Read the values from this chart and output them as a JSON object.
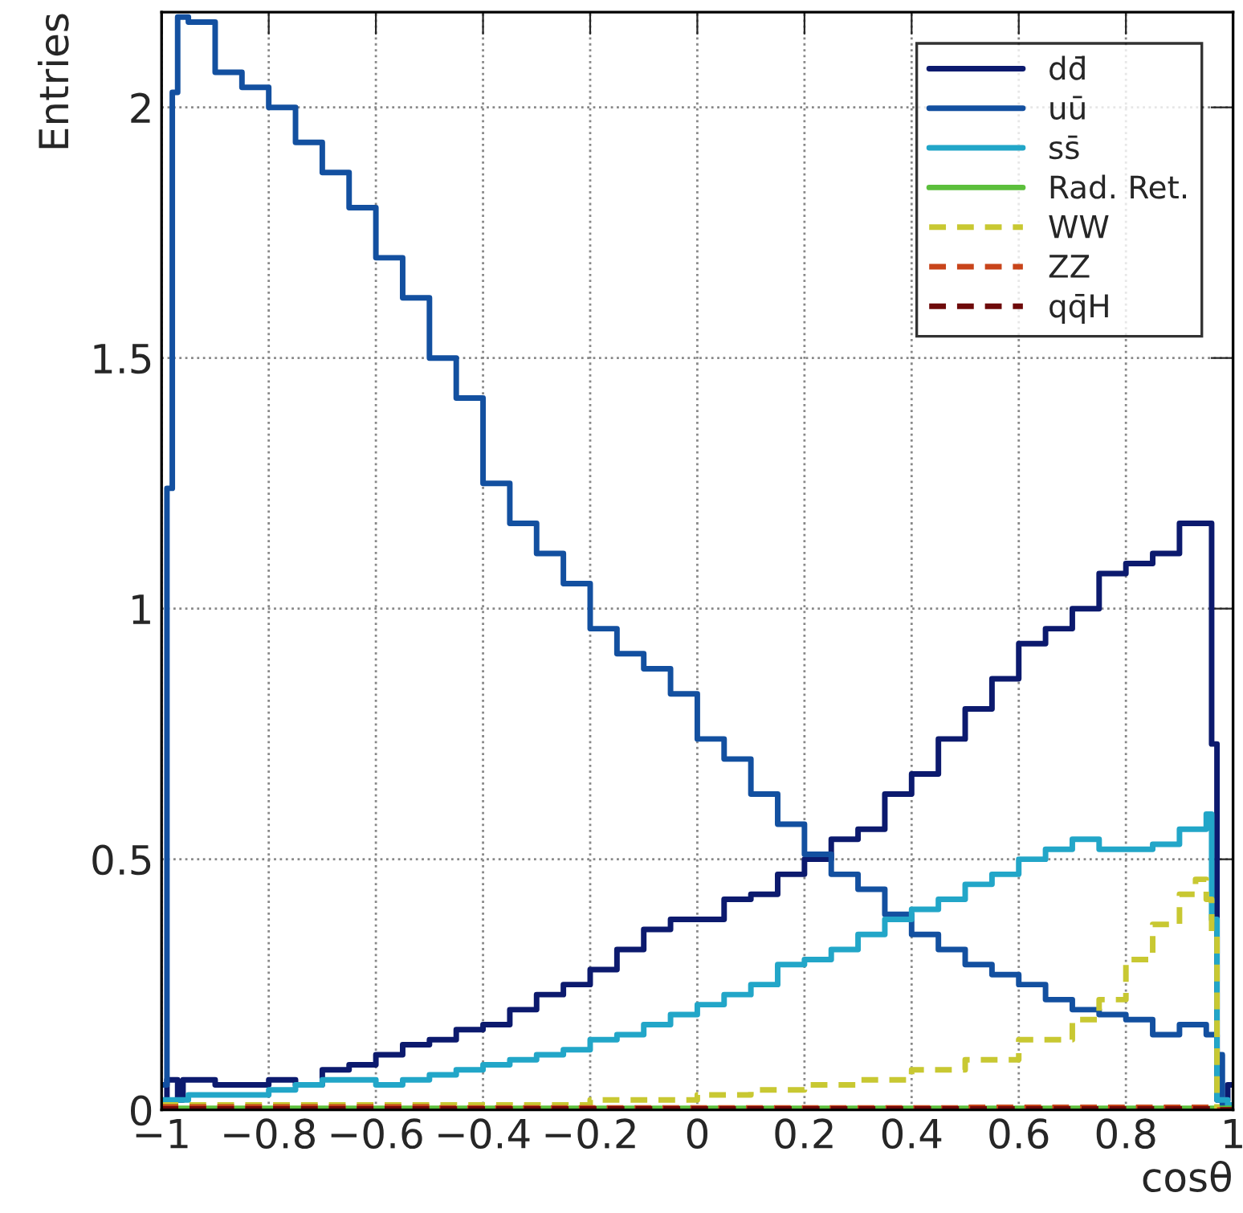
{
  "chart_data": {
    "type": "step",
    "xlabel": "cosθ",
    "ylabel": "Entries",
    "xlim": [
      -1,
      1
    ],
    "ylim": [
      0,
      2.19
    ],
    "xticks": [
      {
        "value": -1,
        "label": "−1"
      },
      {
        "value": -0.8,
        "label": "−0.8"
      },
      {
        "value": -0.6,
        "label": "−0.6"
      },
      {
        "value": -0.4,
        "label": "−0.4"
      },
      {
        "value": -0.2,
        "label": "−0.2"
      },
      0,
      0.2,
      0.4,
      0.6,
      0.8,
      1
    ],
    "yticks": [
      0,
      0.5,
      1,
      1.5,
      2
    ],
    "grid": true,
    "legend": "top right",
    "series": [
      {
        "name": "dd̄",
        "color": "#0c1a6e",
        "line_style": "solid",
        "x": [
          -1,
          -0.99,
          -0.97,
          -0.96,
          -0.9,
          -0.85,
          -0.8,
          -0.75,
          -0.7,
          -0.65,
          -0.6,
          -0.55,
          -0.5,
          -0.45,
          -0.4,
          -0.35,
          -0.3,
          -0.25,
          -0.2,
          -0.15,
          -0.1,
          -0.05,
          0,
          0.05,
          0.1,
          0.15,
          0.2,
          0.25,
          0.3,
          0.35,
          0.4,
          0.45,
          0.5,
          0.55,
          0.6,
          0.65,
          0.7,
          0.75,
          0.8,
          0.85,
          0.9,
          0.96,
          0.97,
          0.99,
          1
        ],
        "values": [
          0,
          0.06,
          0.02,
          0.06,
          0.05,
          0.05,
          0.06,
          0.05,
          0.08,
          0.09,
          0.11,
          0.13,
          0.14,
          0.16,
          0.17,
          0.2,
          0.23,
          0.25,
          0.28,
          0.32,
          0.36,
          0.38,
          0.38,
          0.42,
          0.43,
          0.47,
          0.5,
          0.54,
          0.56,
          0.63,
          0.67,
          0.74,
          0.8,
          0.86,
          0.93,
          0.96,
          1.0,
          1.07,
          1.09,
          1.11,
          1.17,
          0.73,
          0.02,
          0.05,
          0.05
        ]
      },
      {
        "name": "uū",
        "color": "#1350a0",
        "line_style": "solid",
        "x": [
          -1,
          -0.99,
          -0.98,
          -0.97,
          -0.95,
          -0.9,
          -0.85,
          -0.8,
          -0.75,
          -0.7,
          -0.65,
          -0.6,
          -0.55,
          -0.5,
          -0.45,
          -0.4,
          -0.35,
          -0.3,
          -0.25,
          -0.2,
          -0.15,
          -0.1,
          -0.05,
          0,
          0.05,
          0.1,
          0.15,
          0.2,
          0.25,
          0.3,
          0.35,
          0.4,
          0.45,
          0.5,
          0.55,
          0.6,
          0.65,
          0.7,
          0.75,
          0.8,
          0.85,
          0.9,
          0.95,
          0.97,
          0.98,
          1
        ],
        "values": [
          0.05,
          1.24,
          2.03,
          2.18,
          2.17,
          2.07,
          2.04,
          2.0,
          1.93,
          1.87,
          1.8,
          1.7,
          1.62,
          1.5,
          1.42,
          1.25,
          1.17,
          1.11,
          1.05,
          0.96,
          0.91,
          0.88,
          0.83,
          0.74,
          0.7,
          0.63,
          0.57,
          0.51,
          0.47,
          0.44,
          0.39,
          0.35,
          0.32,
          0.29,
          0.27,
          0.25,
          0.22,
          0.2,
          0.19,
          0.18,
          0.15,
          0.17,
          0.15,
          0.11,
          0.01,
          0.01
        ]
      },
      {
        "name": "ss̄",
        "color": "#22a6c8",
        "line_style": "solid",
        "x": [
          -1,
          -0.95,
          -0.9,
          -0.85,
          -0.8,
          -0.75,
          -0.7,
          -0.65,
          -0.6,
          -0.55,
          -0.5,
          -0.45,
          -0.4,
          -0.35,
          -0.3,
          -0.25,
          -0.2,
          -0.15,
          -0.1,
          -0.05,
          0,
          0.05,
          0.1,
          0.15,
          0.2,
          0.25,
          0.3,
          0.35,
          0.4,
          0.45,
          0.5,
          0.55,
          0.6,
          0.65,
          0.7,
          0.75,
          0.8,
          0.85,
          0.9,
          0.95,
          0.96,
          0.97,
          0.99,
          1
        ],
        "values": [
          0.02,
          0.03,
          0.03,
          0.03,
          0.04,
          0.05,
          0.06,
          0.06,
          0.05,
          0.06,
          0.07,
          0.08,
          0.09,
          0.1,
          0.11,
          0.12,
          0.14,
          0.15,
          0.17,
          0.19,
          0.21,
          0.23,
          0.25,
          0.29,
          0.3,
          0.32,
          0.35,
          0.38,
          0.4,
          0.42,
          0.45,
          0.47,
          0.5,
          0.52,
          0.54,
          0.52,
          0.52,
          0.53,
          0.56,
          0.59,
          0.38,
          0.02,
          0.01,
          0.01
        ]
      },
      {
        "name": "Rad. Ret.",
        "color": "#5cbf3c",
        "line_style": "solid",
        "x": [
          -1,
          -0.5,
          0,
          0.5,
          1
        ],
        "values": [
          0.003,
          0.003,
          0.003,
          0.003,
          0.003
        ]
      },
      {
        "name": "WW",
        "color": "#c8c832",
        "line_style": "dashed",
        "x": [
          -1,
          -0.5,
          -0.2,
          0,
          0.1,
          0.2,
          0.3,
          0.4,
          0.5,
          0.6,
          0.7,
          0.75,
          0.8,
          0.85,
          0.9,
          0.93,
          0.95,
          0.96,
          0.97,
          1
        ],
        "values": [
          0.01,
          0.01,
          0.02,
          0.03,
          0.04,
          0.05,
          0.06,
          0.08,
          0.1,
          0.14,
          0.18,
          0.22,
          0.3,
          0.37,
          0.43,
          0.46,
          0.42,
          0.35,
          0.0,
          0.0
        ]
      },
      {
        "name": "ZZ",
        "color": "#c8441a",
        "line_style": "dashed",
        "x": [
          -1,
          -0.5,
          0,
          0.5,
          0.97,
          1
        ],
        "values": [
          0.006,
          0.004,
          0.004,
          0.005,
          0.0,
          0.0
        ]
      },
      {
        "name": "qq̄H",
        "color": "#6e0a0a",
        "line_style": "dashed",
        "x": [
          -1,
          -0.5,
          0,
          0.5,
          0.97,
          1
        ],
        "values": [
          0.002,
          0.002,
          0.002,
          0.002,
          0.0,
          0.0
        ]
      }
    ]
  }
}
